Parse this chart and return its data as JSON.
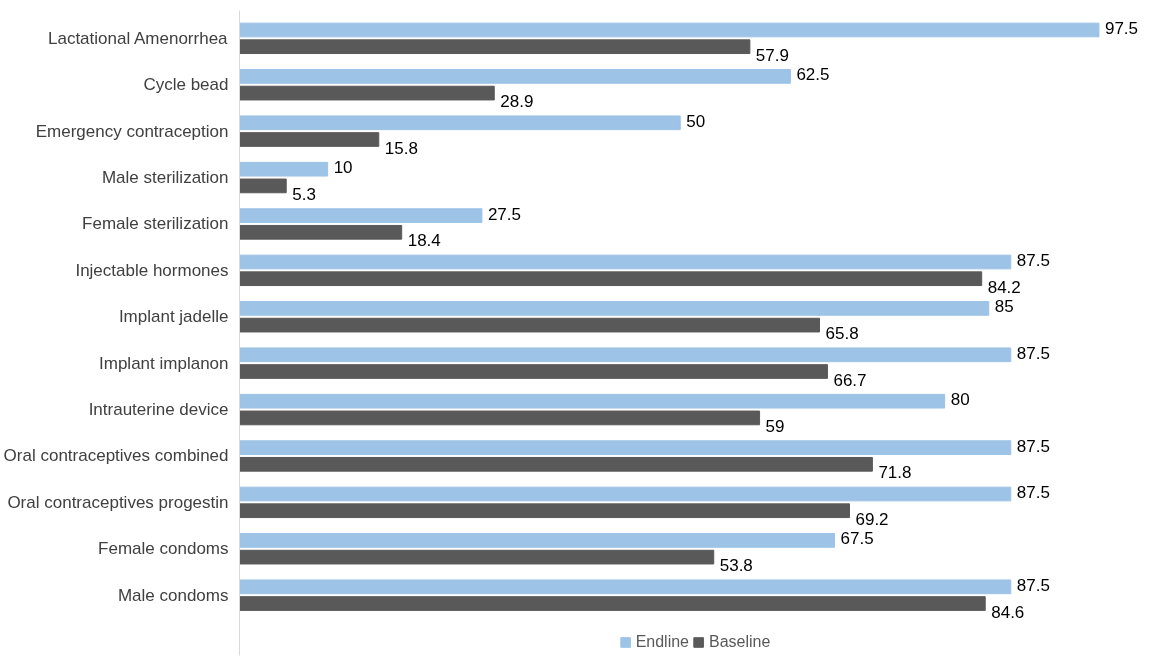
{
  "chart_data": {
    "type": "bar",
    "orientation": "horizontal",
    "categories": [
      "Lactational Amenorrhea",
      "Cycle bead",
      "Emergency contraception",
      "Male sterilization",
      "Female sterilization",
      "Injectable hormones",
      "Implant jadelle",
      "Implant implanon",
      "Intrauterine device",
      "Oral contraceptives combined",
      "Oral contraceptives progestin",
      "Female condoms",
      "Male condoms"
    ],
    "series": [
      {
        "name": "Endline",
        "color": "#9dc3e6",
        "values": [
          97.5,
          62.5,
          50,
          10,
          27.5,
          87.5,
          85,
          87.5,
          80,
          87.5,
          87.5,
          67.5,
          87.5
        ]
      },
      {
        "name": "Baseline",
        "color": "#595959",
        "values": [
          57.9,
          28.9,
          15.8,
          5.3,
          18.4,
          84.2,
          65.8,
          66.7,
          59,
          71.8,
          69.2,
          53.8,
          84.6
        ]
      }
    ],
    "data_labels": true,
    "legend": "bottom",
    "grid": false
  }
}
